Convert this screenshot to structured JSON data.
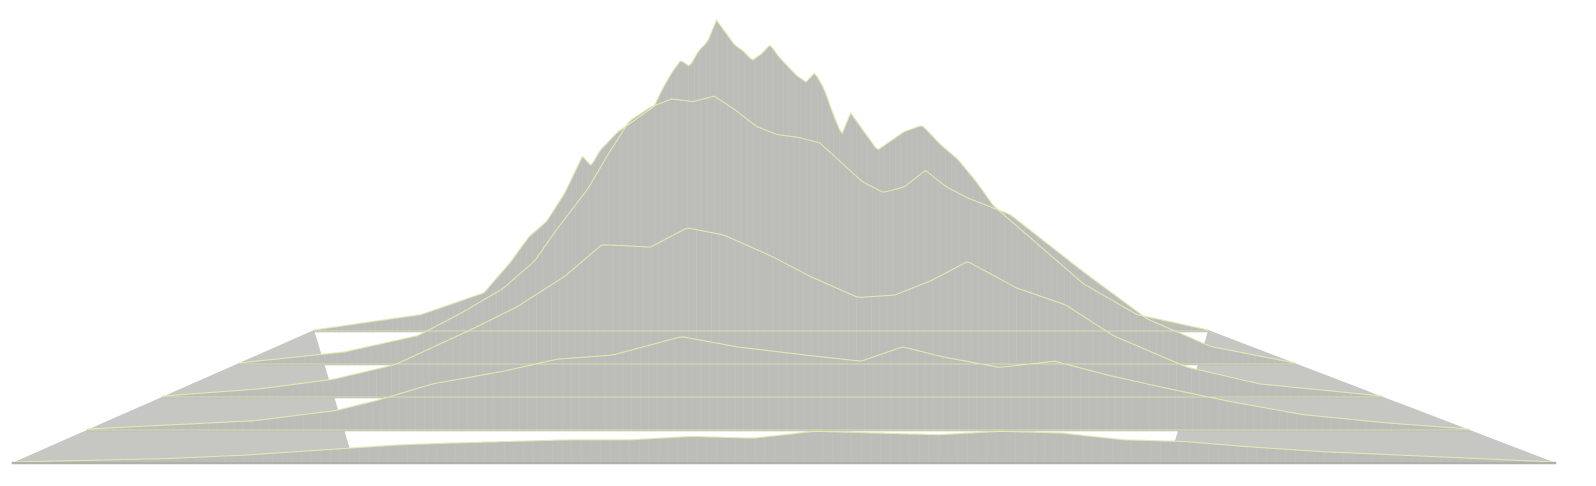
{
  "chart_data": {
    "type": "area",
    "title": "",
    "xlabel": "",
    "ylabel": "",
    "grid": false,
    "colors": {
      "fill": "#bcbcb8",
      "fill_edge": "#b4b4b0",
      "ridge_line": "#dfeab3",
      "background": "#ffffff"
    },
    "x_range": [
      0,
      1
    ],
    "y_range": [
      0,
      1
    ],
    "ridges": [
      {
        "x": [
          0.0,
          0.05,
          0.1,
          0.15,
          0.2,
          0.25,
          0.28,
          0.32,
          0.36,
          0.4,
          0.44,
          0.48,
          0.52,
          0.56,
          0.6,
          0.64,
          0.68,
          0.72,
          0.76,
          0.8,
          0.85,
          0.9,
          0.95,
          1.0
        ],
        "values": [
          0.0,
          0.01,
          0.02,
          0.04,
          0.07,
          0.1,
          0.11,
          0.12,
          0.13,
          0.13,
          0.15,
          0.14,
          0.18,
          0.17,
          0.16,
          0.18,
          0.17,
          0.13,
          0.12,
          0.09,
          0.06,
          0.04,
          0.02,
          0.0
        ]
      },
      {
        "x": [
          0.0,
          0.06,
          0.12,
          0.18,
          0.21,
          0.25,
          0.3,
          0.34,
          0.38,
          0.43,
          0.47,
          0.52,
          0.56,
          0.59,
          0.62,
          0.66,
          0.7,
          0.74,
          0.78,
          0.83,
          0.88,
          0.94,
          1.0
        ],
        "values": [
          0.0,
          0.02,
          0.04,
          0.09,
          0.14,
          0.22,
          0.28,
          0.34,
          0.36,
          0.45,
          0.4,
          0.36,
          0.33,
          0.4,
          0.35,
          0.3,
          0.33,
          0.26,
          0.2,
          0.13,
          0.07,
          0.03,
          0.0
        ]
      },
      {
        "x": [
          0.0,
          0.08,
          0.14,
          0.19,
          0.22,
          0.25,
          0.29,
          0.33,
          0.36,
          0.4,
          0.43,
          0.46,
          0.5,
          0.53,
          0.57,
          0.6,
          0.63,
          0.66,
          0.7,
          0.74,
          0.78,
          0.84,
          0.9,
          1.0
        ],
        "values": [
          0.0,
          0.03,
          0.07,
          0.13,
          0.2,
          0.27,
          0.37,
          0.5,
          0.63,
          0.62,
          0.7,
          0.67,
          0.58,
          0.5,
          0.41,
          0.42,
          0.48,
          0.56,
          0.45,
          0.38,
          0.25,
          0.12,
          0.05,
          0.0
        ]
      },
      {
        "x": [
          0.0,
          0.1,
          0.17,
          0.21,
          0.25,
          0.28,
          0.3,
          0.33,
          0.35,
          0.37,
          0.39,
          0.41,
          0.43,
          0.45,
          0.47,
          0.49,
          0.51,
          0.53,
          0.55,
          0.57,
          0.59,
          0.61,
          0.63,
          0.65,
          0.67,
          0.69,
          0.71,
          0.73,
          0.76,
          0.8,
          0.86,
          0.92,
          1.0
        ],
        "values": [
          0.0,
          0.04,
          0.1,
          0.18,
          0.27,
          0.37,
          0.48,
          0.63,
          0.76,
          0.88,
          0.93,
          0.96,
          0.95,
          0.97,
          0.92,
          0.86,
          0.83,
          0.82,
          0.8,
          0.73,
          0.66,
          0.62,
          0.64,
          0.7,
          0.64,
          0.6,
          0.57,
          0.54,
          0.45,
          0.33,
          0.16,
          0.06,
          0.0
        ]
      },
      {
        "x": [
          0.0,
          0.12,
          0.19,
          0.22,
          0.24,
          0.26,
          0.28,
          0.3,
          0.31,
          0.32,
          0.34,
          0.36,
          0.38,
          0.39,
          0.4,
          0.41,
          0.42,
          0.43,
          0.44,
          0.45,
          0.46,
          0.47,
          0.48,
          0.49,
          0.5,
          0.51,
          0.52,
          0.53,
          0.54,
          0.55,
          0.56,
          0.57,
          0.58,
          0.59,
          0.6,
          0.61,
          0.62,
          0.63,
          0.64,
          0.66,
          0.68,
          0.7,
          0.72,
          0.74,
          0.76,
          0.8,
          0.86,
          0.92,
          1.0
        ],
        "values": [
          0.0,
          0.05,
          0.12,
          0.22,
          0.3,
          0.35,
          0.44,
          0.56,
          0.53,
          0.58,
          0.64,
          0.68,
          0.72,
          0.78,
          0.83,
          0.87,
          0.85,
          0.9,
          0.93,
          1.0,
          0.96,
          0.92,
          0.9,
          0.87,
          0.89,
          0.92,
          0.88,
          0.85,
          0.82,
          0.8,
          0.83,
          0.78,
          0.7,
          0.63,
          0.7,
          0.66,
          0.62,
          0.58,
          0.6,
          0.64,
          0.66,
          0.6,
          0.55,
          0.48,
          0.4,
          0.3,
          0.15,
          0.05,
          0.0
        ]
      }
    ]
  }
}
